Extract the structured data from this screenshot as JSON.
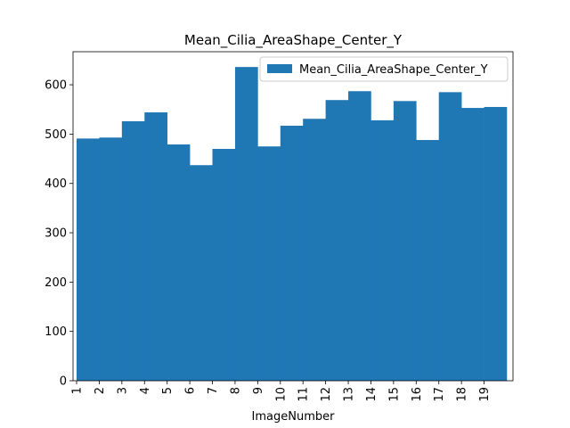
{
  "chart_data": {
    "type": "bar",
    "title": "Mean_Cilia_AreaShape_Center_Y",
    "xlabel": "ImageNumber",
    "categories": [
      "1",
      "2",
      "3",
      "4",
      "5",
      "6",
      "7",
      "8",
      "9",
      "10",
      "11",
      "12",
      "13",
      "14",
      "15",
      "16",
      "17",
      "18",
      "19"
    ],
    "series": [
      {
        "name": "Mean_Cilia_AreaShape_Center_Y",
        "color": "#1f77b4",
        "values": [
          491,
          493,
          526,
          544,
          479,
          437,
          470,
          636,
          475,
          517,
          531,
          569,
          587,
          528,
          567,
          488,
          585,
          553,
          555
        ]
      }
    ],
    "ylim": [
      0,
      667
    ],
    "yticks": [
      0,
      100,
      200,
      300,
      400,
      500,
      600
    ],
    "legend": "upper right"
  }
}
